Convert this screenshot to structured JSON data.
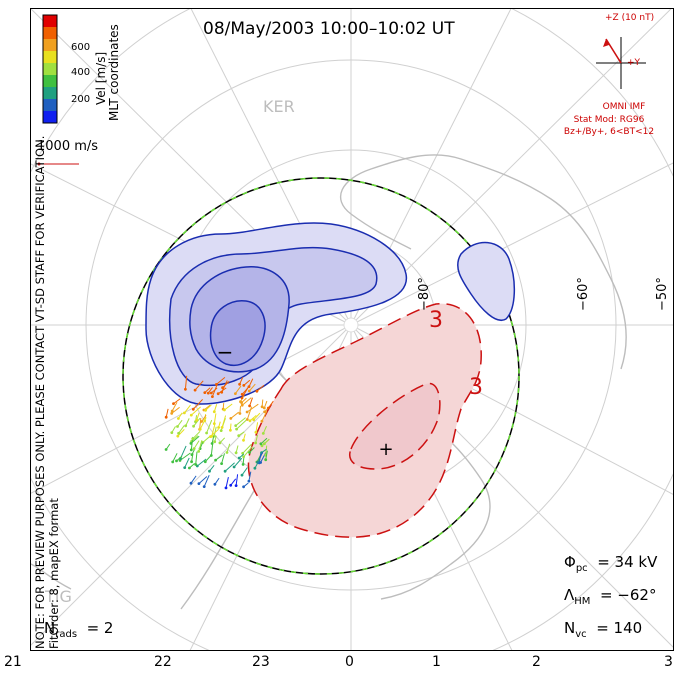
{
  "title": "08/May/2003 10:00–10:02 UT",
  "colorbar": {
    "unit_label": "Vel [m/s]",
    "ticks": [
      "600",
      "400",
      "200"
    ],
    "colors": [
      "#e00000",
      "#f06000",
      "#f0a020",
      "#e8e020",
      "#a0e040",
      "#40c040",
      "#20a080",
      "#2060c0",
      "#1020f0"
    ]
  },
  "coords_label": "MLT coordinates",
  "scale_vector_label": "1000 m/s",
  "imf": {
    "z_label": "+Z (10 nT)",
    "y_label": "+Y",
    "source": "OMNI IMF",
    "stat_mod": "Stat Mod: RG96",
    "condition": "Bz+/By+, 6<BT<12"
  },
  "stations": {
    "ker": "KER",
    "tig": "TIG"
  },
  "latitude_labels": [
    "−80°",
    "−60°",
    "−50°"
  ],
  "contour_labels": [
    "3",
    "3"
  ],
  "extrema_markers": {
    "min": "−",
    "max": "+"
  },
  "preview_note": "NOTE: FOR PREVIEW PURPOSES ONLY. PLEASE CONTACT VT-SD STAFF FOR VERIFICATION.",
  "fit_label": "FitOrder: 8, mapEX format",
  "stats": {
    "phi_pc_symbol": "Φ",
    "phi_pc_sub": "pc",
    "phi_pc_value": "= 34 kV",
    "lambda_hm_symbol": "Λ",
    "lambda_hm_sub": "HM",
    "lambda_hm_value": "= −62°",
    "n_vc_symbol": "N",
    "n_vc_sub": "vc",
    "n_vc_value": "= 140",
    "n_rads_symbol": "N",
    "n_rads_sub": "rads",
    "n_rads_value": "= 2"
  },
  "mlt_ticks": [
    "21",
    "22",
    "23",
    "0",
    "1",
    "2",
    "3"
  ],
  "colors": {
    "negative_fill": "#c8c8ee",
    "negative_line": "#1a2db0",
    "positive_fill": "#f5d6d6",
    "positive_line": "#cc1111",
    "coastline": "#bdbdbd",
    "boundary": "#000000",
    "boundary_dash": "#66dd33"
  }
}
